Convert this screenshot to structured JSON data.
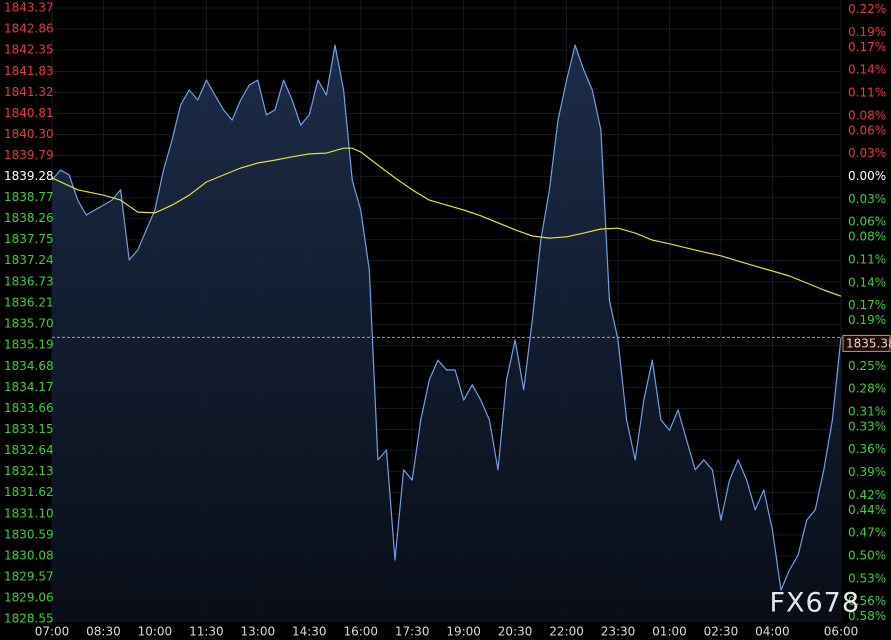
{
  "chart_data": {
    "type": "line",
    "watermark": "FX678",
    "background": "#000000",
    "grid": true,
    "xlim": [
      "07:00",
      "06:00"
    ],
    "xticks": [
      "07:00",
      "08:30",
      "10:00",
      "11:30",
      "13:00",
      "14:30",
      "16:00",
      "17:30",
      "19:00",
      "20:30",
      "22:00",
      "23:30",
      "01:00",
      "02:30",
      "04:00",
      "06:00"
    ],
    "ylim": [
      1828.55,
      1843.37
    ],
    "yticks": [
      1843.37,
      1842.86,
      1842.35,
      1841.83,
      1841.32,
      1840.81,
      {
        "value": 1840.3,
        "label": "1840.30"
      },
      1839.79,
      1839.28,
      1838.77,
      1838.26,
      1837.75,
      1837.24,
      1836.73,
      1836.21,
      {
        "value": 1835.7,
        "label": "1835.70"
      },
      1835.19,
      1834.68,
      1834.17,
      1833.66,
      1833.15,
      1832.64,
      1832.13,
      1831.62,
      {
        "value": 1831.1,
        "label": "1831.10"
      },
      1830.59,
      1830.08,
      1829.57,
      1829.06,
      1828.55
    ],
    "y2lim": [
      -0.583,
      0.222
    ],
    "y2ticks": [
      {
        "value": 0.22,
        "label": "0.22%"
      },
      {
        "value": 0.19,
        "label": "0.19%"
      },
      {
        "value": 0.17,
        "label": "0.17%"
      },
      {
        "value": 0.14,
        "label": "0.14%"
      },
      {
        "value": 0.11,
        "label": "0.11%"
      },
      {
        "value": 0.08,
        "label": "0.08%"
      },
      {
        "value": 0.06,
        "label": "0.06%"
      },
      {
        "value": 0.03,
        "label": "0.03%"
      },
      {
        "value": 0,
        "label": "0.00%"
      },
      {
        "value": -0.03,
        "label": "0.03%"
      },
      {
        "value": -0.06,
        "label": "0.06%"
      },
      {
        "value": -0.08,
        "label": "0.08%"
      },
      {
        "value": -0.11,
        "label": "0.11%"
      },
      {
        "value": -0.14,
        "label": "0.14%"
      },
      {
        "value": -0.17,
        "label": "0.17%"
      },
      {
        "value": -0.19,
        "label": "0.19%"
      },
      {
        "value": -0.25,
        "label": "0.25%"
      },
      {
        "value": -0.28,
        "label": "0.28%"
      },
      {
        "value": -0.31,
        "label": "0.31%"
      },
      {
        "value": -0.33,
        "label": "0.33%"
      },
      {
        "value": -0.36,
        "label": "0.36%"
      },
      {
        "value": -0.39,
        "label": "0.39%"
      },
      {
        "value": -0.42,
        "label": "0.42%"
      },
      {
        "value": -0.44,
        "label": "0.44%"
      },
      {
        "value": -0.47,
        "label": "0.47%"
      },
      {
        "value": -0.5,
        "label": "0.50%"
      },
      {
        "value": -0.53,
        "label": "0.53%"
      },
      {
        "value": -0.56,
        "label": "0.56%"
      },
      {
        "value": -0.58,
        "label": "0.58%"
      }
    ],
    "tick_colors": {
      "up": "#e8383d",
      "flat": "#ffffff",
      "down": "#3ccf3c"
    },
    "last_price": 1835.38,
    "last_price_color": "#e8875a",
    "series": [
      {
        "color": "#6f9fe6",
        "area": true,
        "x": [
          "07:00",
          "07:15",
          "07:30",
          "07:45",
          "08:00",
          "08:15",
          "08:30",
          "08:45",
          "09:00",
          "09:15",
          "09:30",
          "09:45",
          "10:00",
          "10:15",
          "10:30",
          "10:45",
          "11:00",
          "11:15",
          "11:30",
          "11:45",
          "12:00",
          "12:15",
          "12:30",
          "12:45",
          "13:00",
          "13:15",
          "13:30",
          "13:45",
          "14:00",
          "14:15",
          "14:30",
          "14:45",
          "15:00",
          "15:15",
          "15:30",
          "15:45",
          "16:00",
          "16:15",
          "16:30",
          "16:45",
          "17:00",
          "17:15",
          "17:30",
          "17:45",
          "18:00",
          "18:15",
          "18:30",
          "18:45",
          "19:00",
          "19:15",
          "19:30",
          "19:45",
          "20:00",
          "20:15",
          "20:30",
          "20:45",
          "21:00",
          "21:15",
          "21:30",
          "21:45",
          "22:00",
          "22:15",
          "22:30",
          "22:45",
          "23:00",
          "23:15",
          "23:30",
          "23:45",
          "00:00",
          "00:15",
          "00:30",
          "00:45",
          "01:00",
          "01:15",
          "01:30",
          "01:45",
          "02:00",
          "02:15",
          "02:30",
          "02:45",
          "03:00",
          "03:15",
          "03:30",
          "03:45",
          "04:00",
          "04:15",
          "04:30",
          "04:45",
          "05:00",
          "05:15",
          "05:30",
          "05:45",
          "06:00"
        ],
        "values": [
          1839.2,
          1839.44,
          1839.32,
          1838.71,
          1838.35,
          1838.47,
          1838.59,
          1838.71,
          1838.96,
          1837.26,
          1837.5,
          1837.99,
          1838.47,
          1839.44,
          1840.17,
          1841.02,
          1841.38,
          1841.14,
          1841.62,
          1841.26,
          1840.9,
          1840.65,
          1841.14,
          1841.5,
          1841.62,
          1840.78,
          1840.9,
          1841.62,
          1841.14,
          1840.53,
          1840.78,
          1841.62,
          1841.26,
          1842.47,
          1841.38,
          1839.2,
          1838.47,
          1837.02,
          1832.41,
          1832.65,
          1829.98,
          1832.17,
          1831.92,
          1833.38,
          1834.35,
          1834.83,
          1834.59,
          1834.59,
          1833.86,
          1834.23,
          1833.86,
          1833.38,
          1832.17,
          1834.35,
          1835.32,
          1834.11,
          1835.8,
          1837.74,
          1838.96,
          1840.65,
          1841.62,
          1842.47,
          1841.87,
          1841.38,
          1840.41,
          1836.28,
          1835.32,
          1833.38,
          1832.41,
          1833.86,
          1834.83,
          1833.38,
          1833.13,
          1833.62,
          1832.89,
          1832.17,
          1832.41,
          1832.17,
          1830.95,
          1831.92,
          1832.41,
          1831.92,
          1831.2,
          1831.68,
          1830.71,
          1829.25,
          1829.74,
          1830.1,
          1830.95,
          1831.2,
          1832.17,
          1833.38,
          1835.38
        ]
      },
      {
        "color": "#e6dc3c",
        "area": false,
        "x": [
          "07:00",
          "07:45",
          "08:30",
          "09:00",
          "09:30",
          "10:00",
          "10:30",
          "11:00",
          "11:30",
          "12:00",
          "12:30",
          "13:00",
          "13:30",
          "14:00",
          "14:30",
          "15:00",
          "15:30",
          "15:45",
          "16:00",
          "16:30",
          "17:00",
          "17:30",
          "18:00",
          "18:30",
          "19:00",
          "19:30",
          "20:00",
          "20:30",
          "21:00",
          "21:30",
          "22:00",
          "22:30",
          "23:00",
          "23:30",
          "00:00",
          "00:30",
          "01:00",
          "01:30",
          "02:00",
          "02:30",
          "03:00",
          "03:30",
          "04:00",
          "04:30",
          "05:00",
          "05:30",
          "06:00"
        ],
        "values": [
          1839.25,
          1838.96,
          1838.83,
          1838.71,
          1838.42,
          1838.4,
          1838.59,
          1838.83,
          1839.15,
          1839.32,
          1839.49,
          1839.61,
          1839.68,
          1839.76,
          1839.83,
          1839.85,
          1839.97,
          1839.97,
          1839.88,
          1839.56,
          1839.25,
          1838.96,
          1838.71,
          1838.59,
          1838.47,
          1838.33,
          1838.16,
          1837.99,
          1837.84,
          1837.79,
          1837.82,
          1837.91,
          1838.01,
          1838.03,
          1837.91,
          1837.74,
          1837.65,
          1837.55,
          1837.45,
          1837.36,
          1837.23,
          1837.11,
          1836.99,
          1836.87,
          1836.7,
          1836.53,
          1836.38
        ]
      }
    ]
  }
}
